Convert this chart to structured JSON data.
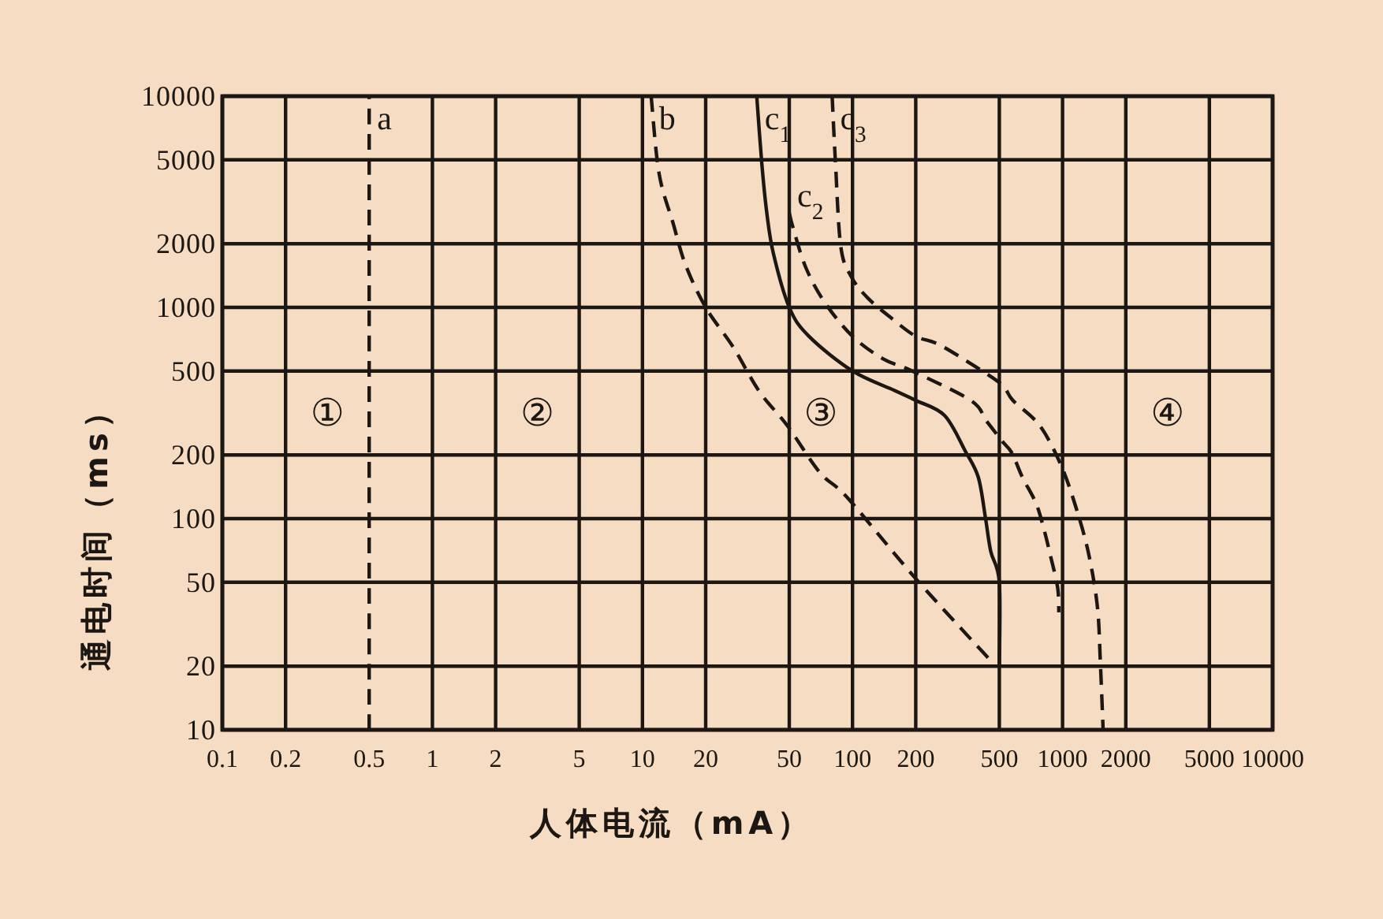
{
  "chart_data": {
    "type": "line",
    "xlabel": "人体电流（mA）",
    "ylabel": "通电时间（ms）",
    "log": "xy",
    "xlim": [
      0.1,
      10000
    ],
    "ylim": [
      10,
      10000
    ],
    "xticks": [
      0.1,
      0.2,
      0.5,
      1,
      2,
      5,
      10,
      20,
      50,
      100,
      200,
      500,
      1000,
      2000,
      5000,
      10000
    ],
    "yticks": [
      10,
      20,
      50,
      100,
      200,
      500,
      1000,
      2000,
      5000,
      10000
    ],
    "grid": true,
    "series": [
      {
        "name": "a",
        "color": "#1c1712",
        "line_style": "dashed",
        "x": [
          0.5,
          0.5
        ],
        "values": [
          10,
          10000
        ]
      },
      {
        "name": "b",
        "color": "#1c1712",
        "line_style": "dashed",
        "x": [
          11,
          12,
          14,
          16,
          20,
          27,
          36,
          49,
          70,
          95,
          200,
          460
        ],
        "values": [
          10000,
          4300,
          2500,
          1600,
          1000,
          650,
          400,
          275,
          165,
          125,
          52,
          21
        ]
      },
      {
        "name": "c$_{1}$",
        "color": "#1c1712",
        "line_style": "solid",
        "x": [
          35,
          37,
          39,
          42,
          50,
          62,
          100,
          158,
          200,
          274,
          344,
          397,
          430,
          455,
          500,
          500
        ],
        "values": [
          10000,
          4800,
          2850,
          1800,
          1000,
          730,
          500,
          405,
          363,
          308,
          209,
          157,
          100,
          70,
          50,
          20
        ]
      },
      {
        "name": "c$_{2}$",
        "color": "#1c1712",
        "line_style": "dashed",
        "x": [
          50,
          52,
          60,
          74,
          100,
          140,
          188,
          365,
          433,
          515,
          573,
          644,
          748,
          818,
          878,
          948,
          960
        ],
        "values": [
          2800,
          2400,
          1540,
          1050,
          730,
          570,
          505,
          363,
          291,
          233,
          205,
          157,
          118,
          88,
          66,
          47,
          36
        ]
      },
      {
        "name": "c$_{3}$",
        "color": "#1c1712",
        "line_style": "dashed",
        "x": [
          80,
          83,
          88,
          99,
          118,
          153,
          200,
          258,
          386,
          515,
          580,
          780,
          990,
          1185,
          1340,
          1466,
          1513,
          1560
        ],
        "values": [
          10000,
          4800,
          1930,
          1390,
          1110,
          890,
          730,
          667,
          523,
          430,
          363,
          275,
          176,
          105,
          66,
          38,
          21,
          10
        ]
      }
    ],
    "annotations": [
      "①",
      "②",
      "③",
      "④"
    ]
  }
}
